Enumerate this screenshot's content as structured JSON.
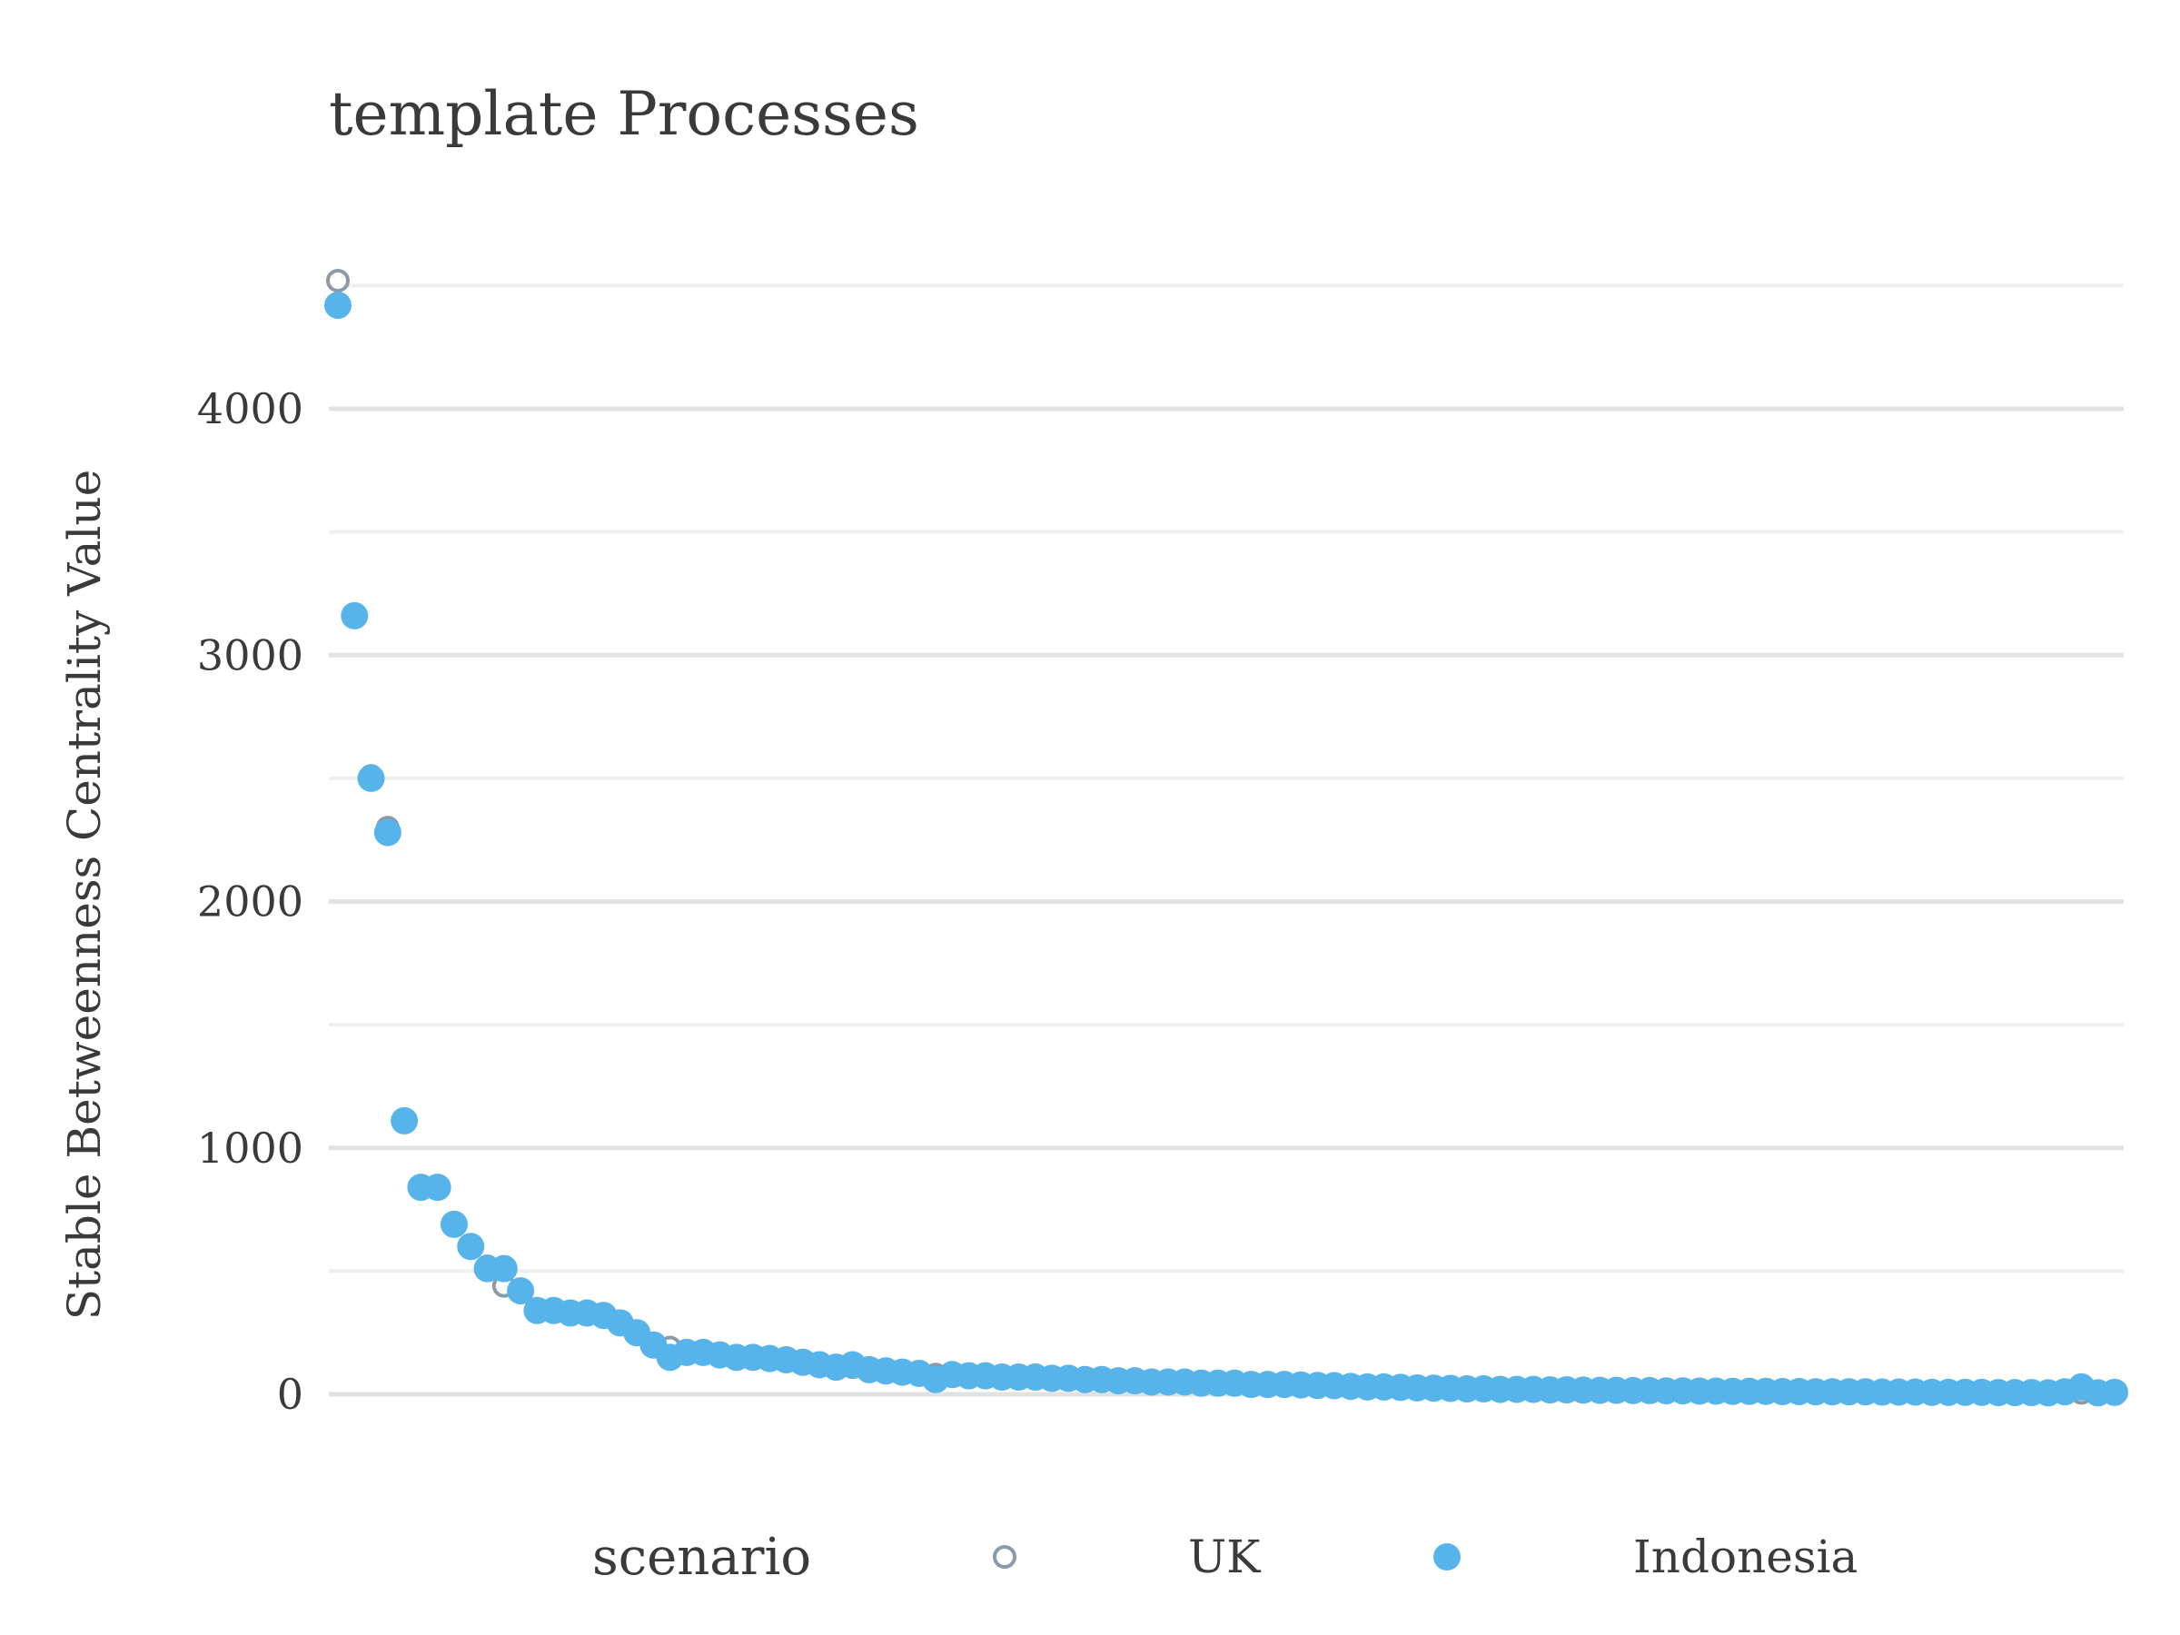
{
  "chart_data": {
    "type": "scatter",
    "title": "template Processes",
    "xlabel": "",
    "ylabel": "Stable Betweenness Centrality Value",
    "ylim": [
      -350,
      4750
    ],
    "yticks": [
      0,
      1000,
      2000,
      3000,
      4000
    ],
    "grid": true,
    "legend": {
      "title": "scenario",
      "placement": "bottom",
      "entries": [
        {
          "name": "UK",
          "marker": "open-circle",
          "color": "#8a9aa8"
        },
        {
          "name": "Indonesia",
          "marker": "filled-circle",
          "color": "#57b4ea"
        }
      ]
    },
    "x": [
      1,
      2,
      3,
      4,
      5,
      6,
      7,
      8,
      9,
      10,
      11,
      12,
      13,
      14,
      15,
      16,
      17,
      18,
      19,
      20,
      21,
      22,
      23,
      24,
      25,
      26,
      27,
      28,
      29,
      30,
      31,
      32,
      33,
      34,
      35,
      36,
      37,
      38,
      39,
      40,
      41,
      42,
      43,
      44,
      45,
      46,
      47,
      48,
      49,
      50,
      51,
      52,
      53,
      54,
      55,
      56,
      57,
      58,
      59,
      60,
      61,
      62,
      63,
      64,
      65,
      66,
      67,
      68,
      69,
      70,
      71,
      72,
      73,
      74,
      75,
      76,
      77,
      78,
      79,
      80,
      81,
      82,
      83,
      84,
      85,
      86,
      87,
      88,
      89,
      90,
      91,
      92,
      93,
      94,
      95,
      96,
      97,
      98,
      99,
      100,
      101,
      102,
      103,
      104,
      105,
      106,
      107,
      108
    ],
    "series": [
      {
        "name": "UK",
        "values": [
          4520,
          3160,
          2510,
          2300,
          1110,
          840,
          840,
          690,
          600,
          520,
          440,
          420,
          340,
          340,
          330,
          330,
          320,
          290,
          250,
          200,
          190,
          170,
          170,
          160,
          150,
          150,
          145,
          140,
          130,
          120,
          110,
          110,
          100,
          95,
          90,
          85,
          80,
          80,
          75,
          75,
          70,
          70,
          70,
          65,
          65,
          60,
          60,
          55,
          55,
          50,
          50,
          50,
          45,
          45,
          45,
          40,
          40,
          40,
          38,
          36,
          35,
          32,
          30,
          30,
          28,
          26,
          25,
          24,
          22,
          22,
          20,
          20,
          20,
          18,
          18,
          17,
          16,
          16,
          15,
          15,
          14,
          14,
          13,
          13,
          12,
          12,
          12,
          11,
          11,
          10,
          10,
          10,
          10,
          9,
          9,
          9,
          8,
          8,
          8,
          8,
          7,
          7,
          7,
          6,
          6,
          6,
          6,
          5
        ]
      },
      {
        "name": "Indonesia",
        "values": [
          4420,
          3160,
          2500,
          2280,
          1110,
          840,
          840,
          690,
          600,
          510,
          510,
          420,
          340,
          340,
          330,
          330,
          320,
          290,
          250,
          200,
          150,
          170,
          170,
          160,
          150,
          150,
          145,
          140,
          130,
          120,
          110,
          120,
          100,
          95,
          90,
          85,
          60,
          80,
          75,
          75,
          70,
          70,
          70,
          65,
          65,
          60,
          60,
          55,
          55,
          50,
          50,
          50,
          45,
          45,
          45,
          40,
          40,
          40,
          38,
          36,
          35,
          32,
          30,
          30,
          28,
          26,
          25,
          24,
          22,
          22,
          20,
          20,
          20,
          18,
          18,
          17,
          16,
          16,
          15,
          15,
          14,
          14,
          13,
          13,
          12,
          12,
          12,
          11,
          11,
          10,
          10,
          10,
          10,
          9,
          9,
          9,
          8,
          8,
          8,
          8,
          7,
          7,
          7,
          6,
          10,
          30,
          6,
          8
        ]
      }
    ]
  }
}
